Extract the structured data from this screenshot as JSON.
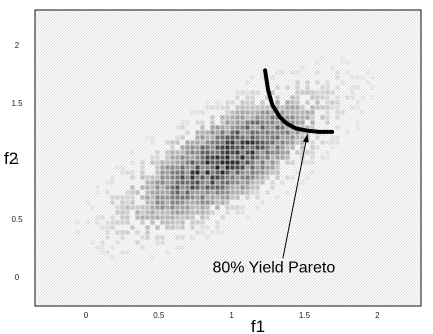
{
  "chart_data": {
    "type": "heatmap",
    "title": "",
    "xlabel": "f1",
    "ylabel": "f2",
    "xlim": [
      -0.35,
      2.3
    ],
    "ylim": [
      -0.25,
      2.3
    ],
    "x_ticks": [
      {
        "value": 0,
        "label": "0"
      },
      {
        "value": 0.5,
        "label": "0.5"
      },
      {
        "value": 1,
        "label": "1"
      },
      {
        "value": 1.5,
        "label": "1.5"
      },
      {
        "value": 2,
        "label": "2"
      }
    ],
    "y_ticks": [
      {
        "value": 0,
        "label": "0"
      },
      {
        "value": 0.5,
        "label": "0.5"
      },
      {
        "value": 1,
        "label": "1"
      },
      {
        "value": 1.5,
        "label": "1.5"
      },
      {
        "value": 2,
        "label": "2"
      }
    ],
    "distribution": {
      "center": [
        0.95,
        1.0
      ],
      "sigma_x": 0.38,
      "sigma_y": 0.33,
      "correlation": 0.72
    },
    "series": [
      {
        "name": "80% Yield Pareto",
        "type": "line",
        "x": [
          1.23,
          1.25,
          1.28,
          1.33,
          1.38,
          1.44,
          1.52,
          1.6,
          1.69
        ],
        "y": [
          1.78,
          1.61,
          1.48,
          1.38,
          1.32,
          1.28,
          1.26,
          1.25,
          1.25
        ]
      }
    ],
    "annotations": [
      {
        "text": "80% Yield Pareto",
        "x": 1.29,
        "y": 0.04,
        "arrow_to": [
          1.52,
          1.23
        ]
      }
    ],
    "grid": false,
    "legend": "none"
  },
  "colors": {
    "background": "#ffffff",
    "hatch": "#c8c8c8",
    "density_dark": "#3a3a3a",
    "curve": "#000000"
  }
}
